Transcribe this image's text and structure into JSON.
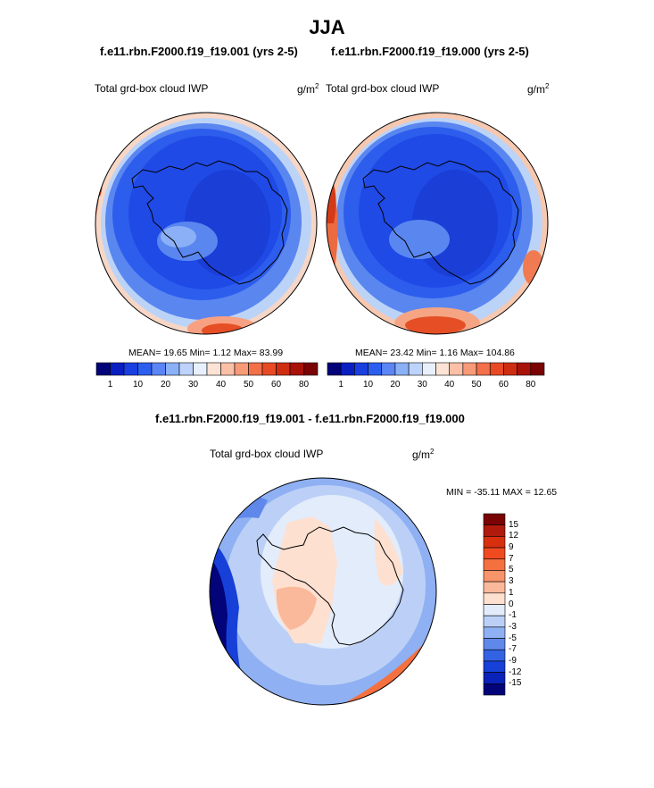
{
  "title": "JJA",
  "panels": [
    {
      "case": "f.e11.rbn.F2000.f19_f19.001 (yrs 2-5)",
      "variable": "Total grd-box cloud IWP",
      "units": "g/m",
      "units_exp": "2",
      "stats": "MEAN=  19.65  Min=   1.12  Max=  83.99"
    },
    {
      "case": "f.e11.rbn.F2000.f19_f19.000 (yrs 2-5)",
      "variable": "Total grd-box cloud IWP",
      "units": "g/m",
      "units_exp": "2",
      "stats": "MEAN=  23.42  Min=   1.16  Max=  104.86"
    }
  ],
  "colorbar_top": {
    "colors": [
      "#03037a",
      "#0a1fc1",
      "#1a3fe0",
      "#2c5ff0",
      "#5b84f5",
      "#8ab0f8",
      "#bdd3fb",
      "#e8f0fd",
      "#fde3d6",
      "#fbc0a6",
      "#f79a78",
      "#f2704a",
      "#e84a25",
      "#cf2d12",
      "#a81208",
      "#7a0303"
    ],
    "ticks": [
      "1",
      "10",
      "20",
      "30",
      "40",
      "50",
      "60",
      "80"
    ]
  },
  "diff": {
    "title": "f.e11.rbn.F2000.f19_f19.001 - f.e11.rbn.F2000.f19_f19.000",
    "variable": "Total grd-box cloud IWP",
    "units": "g/m",
    "units_exp": "2",
    "minmax": "MIN = -35.11 MAX =  12.65",
    "colorbar": {
      "colors": [
        "#7a0303",
        "#b01a0c",
        "#d8300f",
        "#f04a20",
        "#f5703f",
        "#f7946a",
        "#fab99b",
        "#fde0d0",
        "#e3ecfb",
        "#bcd0f7",
        "#8fb0f2",
        "#5f88ea",
        "#3363e3",
        "#1640d8",
        "#0a22b8",
        "#03037a"
      ],
      "ticks": [
        "15",
        "12",
        "9",
        "7",
        "5",
        "3",
        "1",
        "0",
        "-1",
        "-3",
        "-5",
        "-7",
        "-9",
        "-12",
        "-15"
      ]
    }
  }
}
